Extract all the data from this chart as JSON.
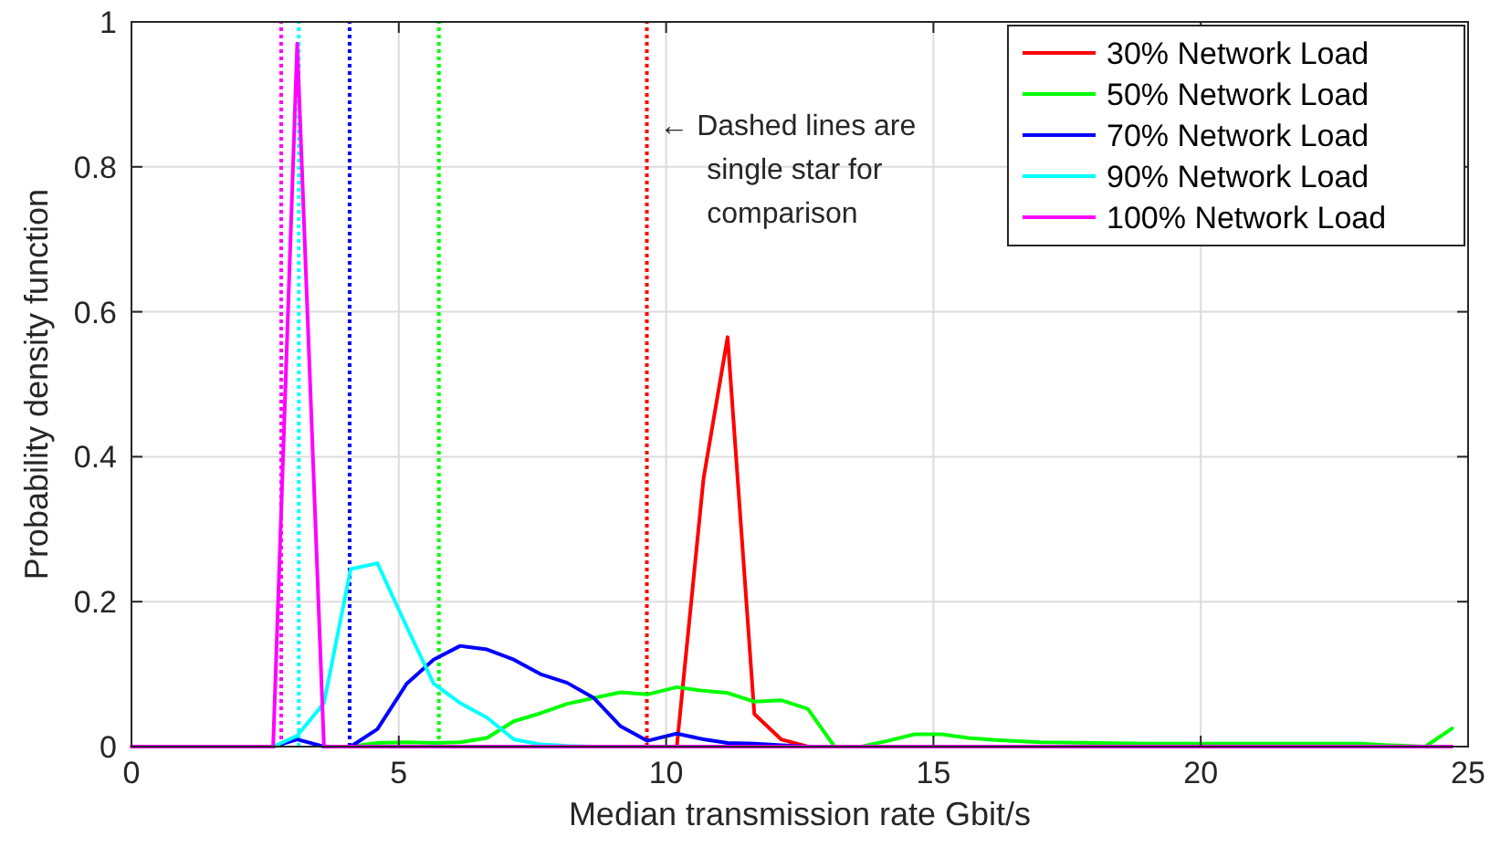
{
  "chart_data": {
    "type": "line",
    "xlabel": "Median transmission rate Gbit/s",
    "ylabel": "Probability density function",
    "x": [
      0,
      2.65,
      3.1,
      3.6,
      4.1,
      4.6,
      5.15,
      5.65,
      6.15,
      6.65,
      7.15,
      7.65,
      8.15,
      8.65,
      9.15,
      9.65,
      10.2,
      10.7,
      11.15,
      11.65,
      12.15,
      12.65,
      13.15,
      13.65,
      14.15,
      14.65,
      15.15,
      15.65,
      16.15,
      17,
      18,
      19,
      20,
      21,
      22,
      23,
      23.5,
      24.2,
      24.7
    ],
    "series": [
      {
        "name": "30% Network Load",
        "color": "#ff0000",
        "values": [
          null,
          null,
          null,
          null,
          null,
          null,
          null,
          null,
          null,
          null,
          null,
          null,
          null,
          null,
          null,
          null,
          0,
          0.37,
          0.565,
          0.045,
          0.01,
          0,
          null,
          null,
          null,
          null,
          null,
          null,
          null,
          null,
          null,
          null,
          null,
          null,
          null,
          null,
          null,
          null,
          null
        ]
      },
      {
        "name": "50% Network Load",
        "color": "#00ff00",
        "values": [
          null,
          null,
          null,
          null,
          0,
          0.005,
          0.006,
          0.005,
          0.006,
          0.012,
          0.035,
          0.046,
          0.059,
          0.067,
          0.075,
          0.072,
          0.082,
          0.077,
          0.074,
          0.062,
          0.064,
          0.052,
          0,
          0,
          0.008,
          0.017,
          0.017,
          0.012,
          0.009,
          0.006,
          0.005,
          0.004,
          0.004,
          0.004,
          0.004,
          0.004,
          0.002,
          0,
          0.025
        ]
      },
      {
        "name": "70% Network Load",
        "color": "#0000ff",
        "values": [
          null,
          0,
          0.01,
          0,
          0,
          0.024,
          0.087,
          0.12,
          0.139,
          0.134,
          0.12,
          0.1,
          0.088,
          0.067,
          0.028,
          0.008,
          0.018,
          0.01,
          0.005,
          0.004,
          0.002,
          0,
          null,
          null,
          null,
          null,
          null,
          null,
          null,
          null,
          null,
          null,
          null,
          null,
          null,
          null,
          null,
          null,
          null
        ]
      },
      {
        "name": "90% Network Load",
        "color": "#00ffff",
        "values": [
          null,
          0,
          0.015,
          0.06,
          0.245,
          0.253,
          0.165,
          0.087,
          0.06,
          0.04,
          0.01,
          0.003,
          0.001,
          0,
          null,
          null,
          null,
          null,
          null,
          null,
          null,
          null,
          null,
          null,
          null,
          null,
          null,
          null,
          null,
          null,
          null,
          null,
          null,
          null,
          null,
          null,
          null,
          null,
          null
        ]
      },
      {
        "name": "100% Network Load",
        "color": "#ff00ff",
        "values": [
          0,
          0,
          0.97,
          0,
          0,
          0,
          0,
          0,
          0,
          0,
          0,
          0,
          0,
          0,
          0,
          0,
          0,
          0,
          0,
          0,
          0,
          0,
          0,
          0,
          0,
          0,
          0,
          0,
          0,
          0,
          0,
          0,
          0,
          0,
          0,
          0,
          0,
          0,
          0
        ]
      }
    ],
    "xlim": [
      0,
      25
    ],
    "xticks": [
      0,
      5,
      10,
      15,
      20,
      25
    ],
    "ylim": [
      0,
      1
    ],
    "yticks": [
      0,
      0.2,
      0.4,
      0.6,
      0.8,
      1
    ],
    "grid": true,
    "legend": "top right",
    "marker": "none",
    "line_style": "solid",
    "ref_lines": [
      {
        "axis": "x",
        "value": 9.64,
        "color": "#ff0000",
        "line_style": "dotted"
      },
      {
        "axis": "x",
        "value": 5.75,
        "color": "#00ff00",
        "line_style": "dotted"
      },
      {
        "axis": "x",
        "value": 4.08,
        "color": "#0000ff",
        "line_style": "dotted"
      },
      {
        "axis": "x",
        "value": 3.13,
        "color": "#00ffff",
        "line_style": "dotted"
      },
      {
        "axis": "x",
        "value": 2.8,
        "color": "#ff00ff",
        "line_style": "dotted"
      }
    ],
    "annotations": [
      "← Dashed lines are\nsingle star for\ncomparison"
    ]
  }
}
